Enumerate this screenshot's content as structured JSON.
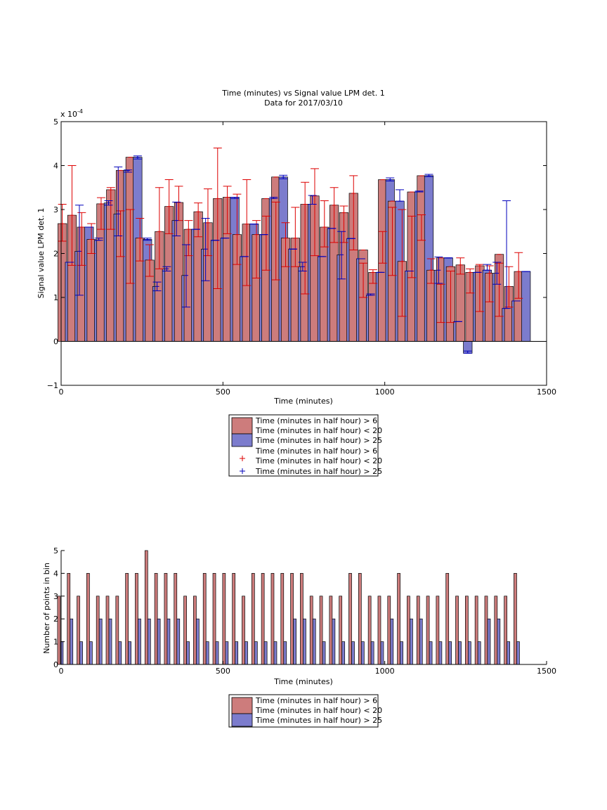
{
  "chart_data": [
    {
      "type": "bar",
      "title": "Time (minutes) vs Signal value LPM det. 1",
      "subtitle": "Data for 2017/03/10",
      "xlabel": "Time (minutes)",
      "ylabel": "Signal value LPM det. 1",
      "exponent_label": "x 10",
      "exponent_power": "-4",
      "xlim": [
        0,
        1500
      ],
      "ylim": [
        -1,
        5
      ],
      "xticks": [
        0,
        500,
        1000,
        1500
      ],
      "yticks": [
        -1,
        0,
        1,
        2,
        3,
        4,
        5
      ],
      "grid": false,
      "legend_position": "below",
      "colors": {
        "series1": "#cd7c7c",
        "series2": "#7c7ccd",
        "err1": "#dd0000",
        "err2": "#0000bb"
      },
      "x": [
        15,
        45,
        75,
        105,
        135,
        165,
        195,
        225,
        255,
        285,
        315,
        345,
        375,
        405,
        435,
        465,
        495,
        525,
        555,
        585,
        615,
        645,
        675,
        705,
        735,
        765,
        795,
        825,
        855,
        885,
        915,
        945,
        975,
        1005,
        1035,
        1065,
        1095,
        1125,
        1155,
        1185,
        1215,
        1245,
        1275,
        1305,
        1335,
        1365,
        1395,
        1425
      ],
      "series": [
        {
          "name": "Time (minutes in half hour) > 6\nTime (minutes in half hour) < 20",
          "values": [
            2.68,
            2.87,
            2.6,
            2.32,
            3.13,
            3.45,
            3.89,
            4.19,
            2.35,
            1.85,
            2.5,
            3.07,
            3.16,
            2.55,
            2.95,
            2.7,
            3.25,
            3.28,
            2.43,
            2.67,
            2.43,
            3.25,
            3.74,
            2.35,
            2.35,
            3.12,
            3.31,
            2.6,
            3.1,
            2.93,
            3.37,
            2.08,
            1.57,
            3.68,
            3.19,
            1.82,
            3.4,
            3.77,
            1.62,
            1.9,
            1.7,
            1.74,
            1.57,
            1.72,
            1.55,
            1.98,
            1.25,
            1.59
          ],
          "err_low": [
            2.28,
            1.73,
            1.73,
            2.0,
            2.55,
            2.55,
            1.93,
            1.32,
            1.83,
            1.48,
            1.65,
            2.45,
            2.75,
            1.95,
            2.38,
            1.95,
            1.2,
            2.45,
            1.75,
            1.27,
            1.44,
            1.62,
            1.4,
            1.7,
            1.7,
            1.08,
            1.95,
            2.15,
            2.25,
            2.25,
            2.08,
            1.0,
            1.32,
            1.78,
            1.5,
            0.57,
            1.45,
            2.3,
            1.32,
            0.43,
            0.43,
            1.53,
            1.1,
            0.68,
            0.9,
            0.57,
            0.78,
            0.98
          ],
          "err_high": [
            3.12,
            4.0,
            2.93,
            2.68,
            3.27,
            3.5,
            2.97,
            3.0,
            2.8,
            2.2,
            3.5,
            3.68,
            3.53,
            2.75,
            3.15,
            3.47,
            4.4,
            3.53,
            3.35,
            3.68,
            2.75,
            2.85,
            3.17,
            2.7,
            3.05,
            3.62,
            3.93,
            3.2,
            3.5,
            3.08,
            3.77,
            1.78,
            1.63,
            2.5,
            3.05,
            3.0,
            2.85,
            2.88,
            1.88,
            1.3,
            1.6,
            1.9,
            1.65,
            1.75,
            1.72,
            1.78,
            1.7,
            2.02
          ]
        },
        {
          "name": "Time (minutes in half hour) > 25",
          "values": [
            1.8,
            2.05,
            2.6,
            2.3,
            3.15,
            2.9,
            3.89,
            4.19,
            2.32,
            1.25,
            1.65,
            2.75,
            1.5,
            2.55,
            2.1,
            2.3,
            2.35,
            3.28,
            1.93,
            2.67,
            2.43,
            3.25,
            3.74,
            2.1,
            1.7,
            3.12,
            1.93,
            2.57,
            1.97,
            2.34,
            1.88,
            1.05,
            1.57,
            3.68,
            3.19,
            1.6,
            3.4,
            3.77,
            1.62,
            1.9,
            0.45,
            -0.27,
            1.57,
            1.62,
            1.55,
            0.75,
            0.92,
            1.59
          ],
          "err_low": [
            1.8,
            1.05,
            2.6,
            2.3,
            3.1,
            2.4,
            3.85,
            4.15,
            2.3,
            1.15,
            1.6,
            2.4,
            0.78,
            2.55,
            1.38,
            2.3,
            2.35,
            3.25,
            1.93,
            2.67,
            2.43,
            3.25,
            3.7,
            2.1,
            1.6,
            3.12,
            1.93,
            2.57,
            1.42,
            2.34,
            1.88,
            1.05,
            1.57,
            3.65,
            3.19,
            1.6,
            3.4,
            3.75,
            1.32,
            1.9,
            0.45,
            -0.27,
            1.57,
            1.62,
            1.3,
            0.75,
            0.92,
            1.59
          ],
          "err_high": [
            1.8,
            3.1,
            2.6,
            2.35,
            3.2,
            3.97,
            3.9,
            4.22,
            2.35,
            1.35,
            1.7,
            3.17,
            2.2,
            2.55,
            2.8,
            2.3,
            2.35,
            3.28,
            1.93,
            2.67,
            2.43,
            3.28,
            3.78,
            2.1,
            1.8,
            3.32,
            1.93,
            2.57,
            2.5,
            2.34,
            1.88,
            1.08,
            1.57,
            3.72,
            3.45,
            1.6,
            3.42,
            3.8,
            1.92,
            1.9,
            0.45,
            -0.22,
            1.57,
            1.75,
            1.8,
            3.2,
            0.92,
            1.59
          ]
        }
      ],
      "legend": [
        {
          "label1": "Time (minutes in half hour) > 6",
          "label2": "Time (minutes in half hour) < 20"
        },
        {
          "label1": "Time (minutes in half hour) > 25",
          "label2": ""
        },
        {
          "label1": "Time (minutes in half hour) > 6",
          "label2": "Time (minutes in half hour) < 20"
        },
        {
          "label1": "Time (minutes in half hour) > 25",
          "label2": ""
        }
      ]
    },
    {
      "type": "bar",
      "title": "",
      "xlabel": "Time (minutes)",
      "ylabel": "Number of points in bin",
      "xlim": [
        0,
        1500
      ],
      "ylim": [
        0,
        5
      ],
      "xticks": [
        0,
        500,
        1000,
        1500
      ],
      "yticks": [
        0,
        1,
        2,
        3,
        4,
        5
      ],
      "grid": false,
      "legend_position": "below",
      "x": [
        15,
        45,
        75,
        105,
        135,
        165,
        195,
        225,
        255,
        285,
        315,
        345,
        375,
        405,
        435,
        465,
        495,
        525,
        555,
        585,
        615,
        645,
        675,
        705,
        735,
        765,
        795,
        825,
        855,
        885,
        915,
        945,
        975,
        1005,
        1035,
        1065,
        1095,
        1125,
        1155,
        1185,
        1215,
        1245,
        1275,
        1305,
        1335,
        1365,
        1395,
        1425
      ],
      "series": [
        {
          "name": "Time (minutes in half hour) > 6\nTime (minutes in half hour) < 20",
          "values": [
            3,
            4,
            3,
            4,
            3,
            3,
            3,
            4,
            4,
            5,
            4,
            4,
            4,
            3,
            3,
            4,
            4,
            4,
            4,
            3,
            4,
            4,
            4,
            4,
            4,
            4,
            3,
            3,
            3,
            3,
            4,
            4,
            3,
            3,
            3,
            4,
            3,
            3,
            3,
            3,
            4,
            3,
            3,
            3,
            3,
            3,
            3,
            4
          ]
        },
        {
          "name": "Time (minutes in half hour) > 25",
          "values": [
            1,
            2,
            1,
            1,
            2,
            2,
            1,
            1,
            2,
            2,
            2,
            2,
            2,
            1,
            2,
            1,
            1,
            1,
            1,
            1,
            1,
            1,
            1,
            1,
            2,
            2,
            2,
            1,
            2,
            1,
            1,
            1,
            1,
            1,
            2,
            1,
            2,
            2,
            1,
            1,
            1,
            1,
            1,
            1,
            2,
            2,
            1,
            1
          ]
        }
      ],
      "legend": [
        {
          "label1": "Time (minutes in half hour) > 6",
          "label2": "Time (minutes in half hour) < 20"
        },
        {
          "label1": "Time (minutes in half hour) > 25",
          "label2": ""
        }
      ]
    }
  ]
}
